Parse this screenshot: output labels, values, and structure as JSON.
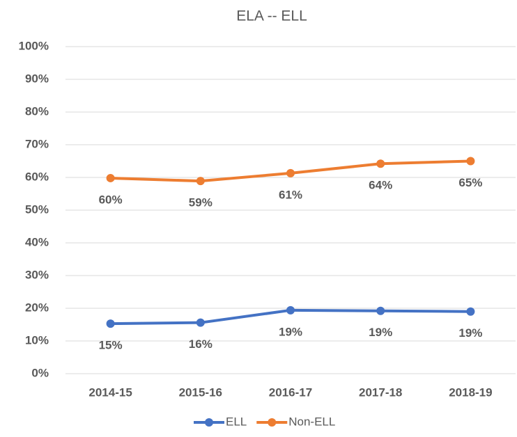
{
  "chart_data": {
    "type": "line",
    "title": "ELA -- ELL",
    "categories": [
      "2014-15",
      "2015-16",
      "2016-17",
      "2017-18",
      "2018-19"
    ],
    "series": [
      {
        "name": "ELL",
        "color": "#4472c4",
        "values": [
          15.3,
          15.6,
          19.4,
          19.2,
          19.0
        ],
        "value_labels": [
          "15%",
          "16%",
          "19%",
          "19%",
          "19%"
        ]
      },
      {
        "name": "Non-ELL",
        "color": "#ed7d31",
        "values": [
          59.8,
          58.9,
          61.3,
          64.2,
          65.0
        ],
        "value_labels": [
          "60%",
          "59%",
          "61%",
          "64%",
          "65%"
        ]
      }
    ],
    "ylim": [
      0,
      100
    ],
    "yticks": [
      {
        "value": 0,
        "label": "0%"
      },
      {
        "value": 10,
        "label": "10%"
      },
      {
        "value": 20,
        "label": "20%"
      },
      {
        "value": 30,
        "label": "30%"
      },
      {
        "value": 40,
        "label": "40%"
      },
      {
        "value": 50,
        "label": "50%"
      },
      {
        "value": 60,
        "label": "60%"
      },
      {
        "value": 70,
        "label": "70%"
      },
      {
        "value": 80,
        "label": "80%"
      },
      {
        "value": 90,
        "label": "90%"
      },
      {
        "value": 100,
        "label": "100%"
      }
    ],
    "grid": true,
    "legend": "bottom"
  }
}
